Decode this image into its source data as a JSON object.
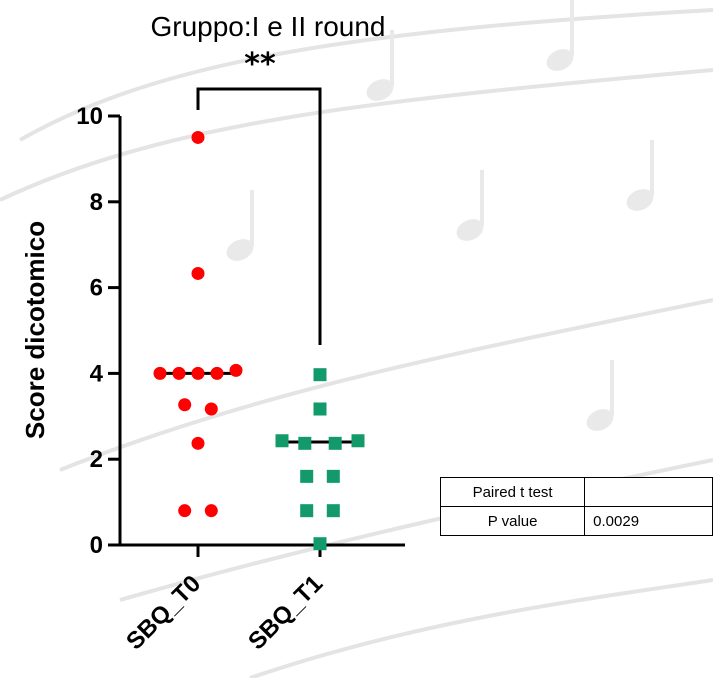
{
  "chart_data": {
    "type": "scatter",
    "title": "Gruppo:I e II round",
    "ylabel": "Score dicotomico",
    "xlabel": "",
    "ylim": [
      0,
      10
    ],
    "yticks": [
      0,
      2,
      4,
      6,
      8,
      10
    ],
    "categories": [
      "SBQ_T0",
      "SBQ_T1"
    ],
    "significance": "**",
    "series": [
      {
        "category": "SBQ_T0",
        "marker": "circle",
        "color": "#ff0000",
        "points": [
          {
            "offset": 0,
            "y": 9.5
          },
          {
            "offset": 0,
            "y": 6.33
          },
          {
            "offset": -1,
            "y": 4.0
          },
          {
            "offset": -0.5,
            "y": 4.0
          },
          {
            "offset": 0,
            "y": 4.0
          },
          {
            "offset": 0.5,
            "y": 4.0
          },
          {
            "offset": 1,
            "y": 4.07
          },
          {
            "offset": -0.35,
            "y": 3.27
          },
          {
            "offset": 0.35,
            "y": 3.17
          },
          {
            "offset": 0,
            "y": 2.37
          },
          {
            "offset": -0.35,
            "y": 0.8
          },
          {
            "offset": 0.35,
            "y": 0.8
          }
        ],
        "median": 4.0
      },
      {
        "category": "SBQ_T1",
        "marker": "square",
        "color": "#129a6a",
        "points": [
          {
            "offset": 0,
            "y": 3.97
          },
          {
            "offset": 0,
            "y": 3.17
          },
          {
            "offset": -1,
            "y": 2.43
          },
          {
            "offset": -0.4,
            "y": 2.37
          },
          {
            "offset": 0.4,
            "y": 2.37
          },
          {
            "offset": 1,
            "y": 2.43
          },
          {
            "offset": -0.35,
            "y": 1.6
          },
          {
            "offset": 0.35,
            "y": 1.6
          },
          {
            "offset": -0.35,
            "y": 0.8
          },
          {
            "offset": 0.35,
            "y": 0.8
          },
          {
            "offset": 0,
            "y": 0.03
          }
        ],
        "median": 2.4
      }
    ]
  },
  "stats_table": {
    "header": "Paired t test",
    "header_value": "",
    "row_label": "P value",
    "row_value": "0.0029"
  }
}
